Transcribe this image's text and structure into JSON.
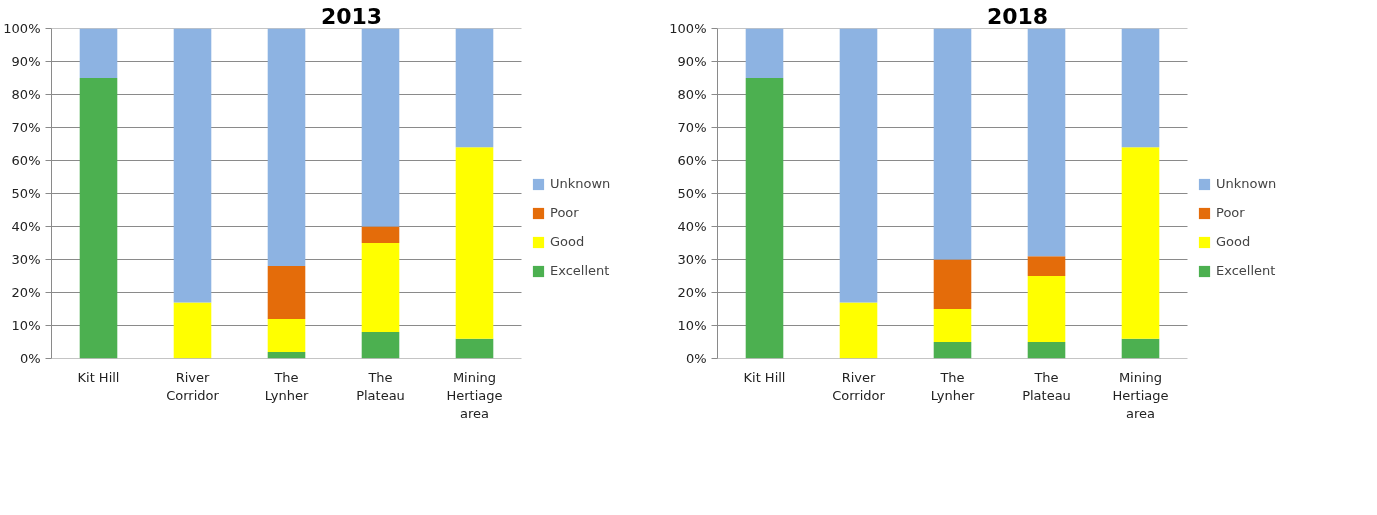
{
  "chart_data": [
    {
      "type": "bar",
      "title": "2013",
      "stacked": true,
      "categories": [
        "Kit Hill",
        "River Corridor",
        "The Lynher",
        "The Plateau",
        "Mining Hertiage area"
      ],
      "series": [
        {
          "name": "Excellent",
          "color": "#4cb050",
          "values": [
            85,
            0,
            2,
            8,
            6
          ]
        },
        {
          "name": "Good",
          "color": "#ffff00",
          "values": [
            0,
            17,
            10,
            27,
            58
          ]
        },
        {
          "name": "Poor",
          "color": "#e46c0a",
          "values": [
            0,
            0,
            16,
            5,
            0
          ]
        },
        {
          "name": "Unknown",
          "color": "#8db3e2",
          "values": [
            15,
            83,
            72,
            60,
            36
          ]
        }
      ],
      "ylim": [
        0,
        100
      ],
      "yticks": [
        {
          "value": 0,
          "label": "0%"
        },
        {
          "value": 10,
          "label": "10%"
        },
        {
          "value": 20,
          "label": "20%"
        },
        {
          "value": 30,
          "label": "30%"
        },
        {
          "value": 40,
          "label": "40%"
        },
        {
          "value": 50,
          "label": "50%"
        },
        {
          "value": 60,
          "label": "60%"
        },
        {
          "value": 70,
          "label": "70%"
        },
        {
          "value": 80,
          "label": "80%"
        },
        {
          "value": 90,
          "label": "90%"
        },
        {
          "value": 100,
          "label": "100%"
        }
      ],
      "grid": "y",
      "legend": "right"
    },
    {
      "type": "bar",
      "title": "2018",
      "stacked": true,
      "categories": [
        "Kit Hill",
        "River Corridor",
        "The Lynher",
        "The Plateau",
        "Mining Hertiage area"
      ],
      "series": [
        {
          "name": "Excellent",
          "color": "#4cb050",
          "values": [
            85,
            0,
            5,
            5,
            6
          ]
        },
        {
          "name": "Good",
          "color": "#ffff00",
          "values": [
            0,
            17,
            10,
            20,
            58
          ]
        },
        {
          "name": "Poor",
          "color": "#e46c0a",
          "values": [
            0,
            0,
            15,
            6,
            0
          ]
        },
        {
          "name": "Unknown",
          "color": "#8db3e2",
          "values": [
            15,
            83,
            70,
            69,
            36
          ]
        }
      ],
      "ylim": [
        0,
        100
      ],
      "yticks": [
        {
          "value": 0,
          "label": "0%"
        },
        {
          "value": 10,
          "label": "10%"
        },
        {
          "value": 20,
          "label": "20%"
        },
        {
          "value": 30,
          "label": "30%"
        },
        {
          "value": 40,
          "label": "40%"
        },
        {
          "value": 50,
          "label": "50%"
        },
        {
          "value": 60,
          "label": "60%"
        },
        {
          "value": 70,
          "label": "70%"
        },
        {
          "value": 80,
          "label": "80%"
        },
        {
          "value": 90,
          "label": "90%"
        },
        {
          "value": 100,
          "label": "100%"
        }
      ],
      "grid": "y",
      "legend": "right"
    }
  ]
}
